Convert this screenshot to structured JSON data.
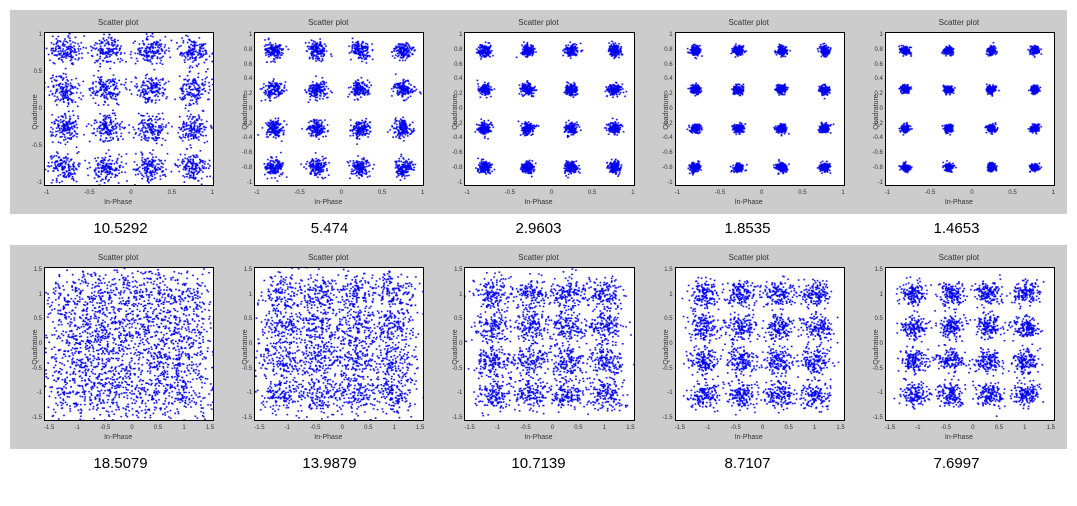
{
  "chart_common": {
    "title": "Scatter plot",
    "xlabel": "In-Phase",
    "ylabel": "Quadrature",
    "marker_color": "#0000ee",
    "background_color": "#ffffff",
    "frame_color": "#cccccc",
    "axis_color": "#000000",
    "font_size_title": 8,
    "font_size_label": 7,
    "font_size_tick": 6,
    "marker_size": 1.5
  },
  "constellation": {
    "levels": [
      -1,
      -0.3333,
      0.3333,
      1
    ],
    "points_per_symbol": 150
  },
  "rows": [
    {
      "type_label": "top",
      "xlim": [
        -1.3,
        1.3
      ],
      "ylim": [
        -1.3,
        1.3
      ],
      "xticks": [
        "-1",
        "-0.5",
        "0",
        "0.5",
        "1"
      ],
      "yticks_set": "A",
      "yticks_A": [
        "1",
        "0.5",
        "0",
        "-0.5",
        "-1"
      ],
      "panels": [
        {
          "caption": "10.5292",
          "sigma": 0.12,
          "yticks": "A"
        },
        {
          "caption": "5.474",
          "sigma": 0.075,
          "yticks": "B"
        },
        {
          "caption": "2.9603",
          "sigma": 0.05,
          "yticks": "B"
        },
        {
          "caption": "1.8535",
          "sigma": 0.04,
          "yticks": "B"
        },
        {
          "caption": "1.4653",
          "sigma": 0.035,
          "yticks": "B"
        }
      ]
    },
    {
      "type_label": "bottom",
      "xlim": [
        -1.5,
        1.5
      ],
      "ylim": [
        -1.5,
        1.5
      ],
      "xticks": [
        "-1.5",
        "-1",
        "-0.5",
        "0",
        "0.5",
        "1",
        "1.5"
      ],
      "panels": [
        {
          "caption": "18.5079",
          "sigma": 0.3
        },
        {
          "caption": "13.9879",
          "sigma": 0.2
        },
        {
          "caption": "10.7139",
          "sigma": 0.16
        },
        {
          "caption": "8.7107",
          "sigma": 0.135
        },
        {
          "caption": "7.6997",
          "sigma": 0.12
        }
      ]
    }
  ],
  "yticks_B": [
    "1",
    "0.8",
    "0.6",
    "0.4",
    "0.2",
    "0",
    "-0.2",
    "-0.4",
    "-0.6",
    "-0.8",
    "-1"
  ],
  "yticks_C": [
    "1.5",
    "1",
    "0.5",
    "0",
    "-0.5",
    "-1",
    "-1.5"
  ]
}
